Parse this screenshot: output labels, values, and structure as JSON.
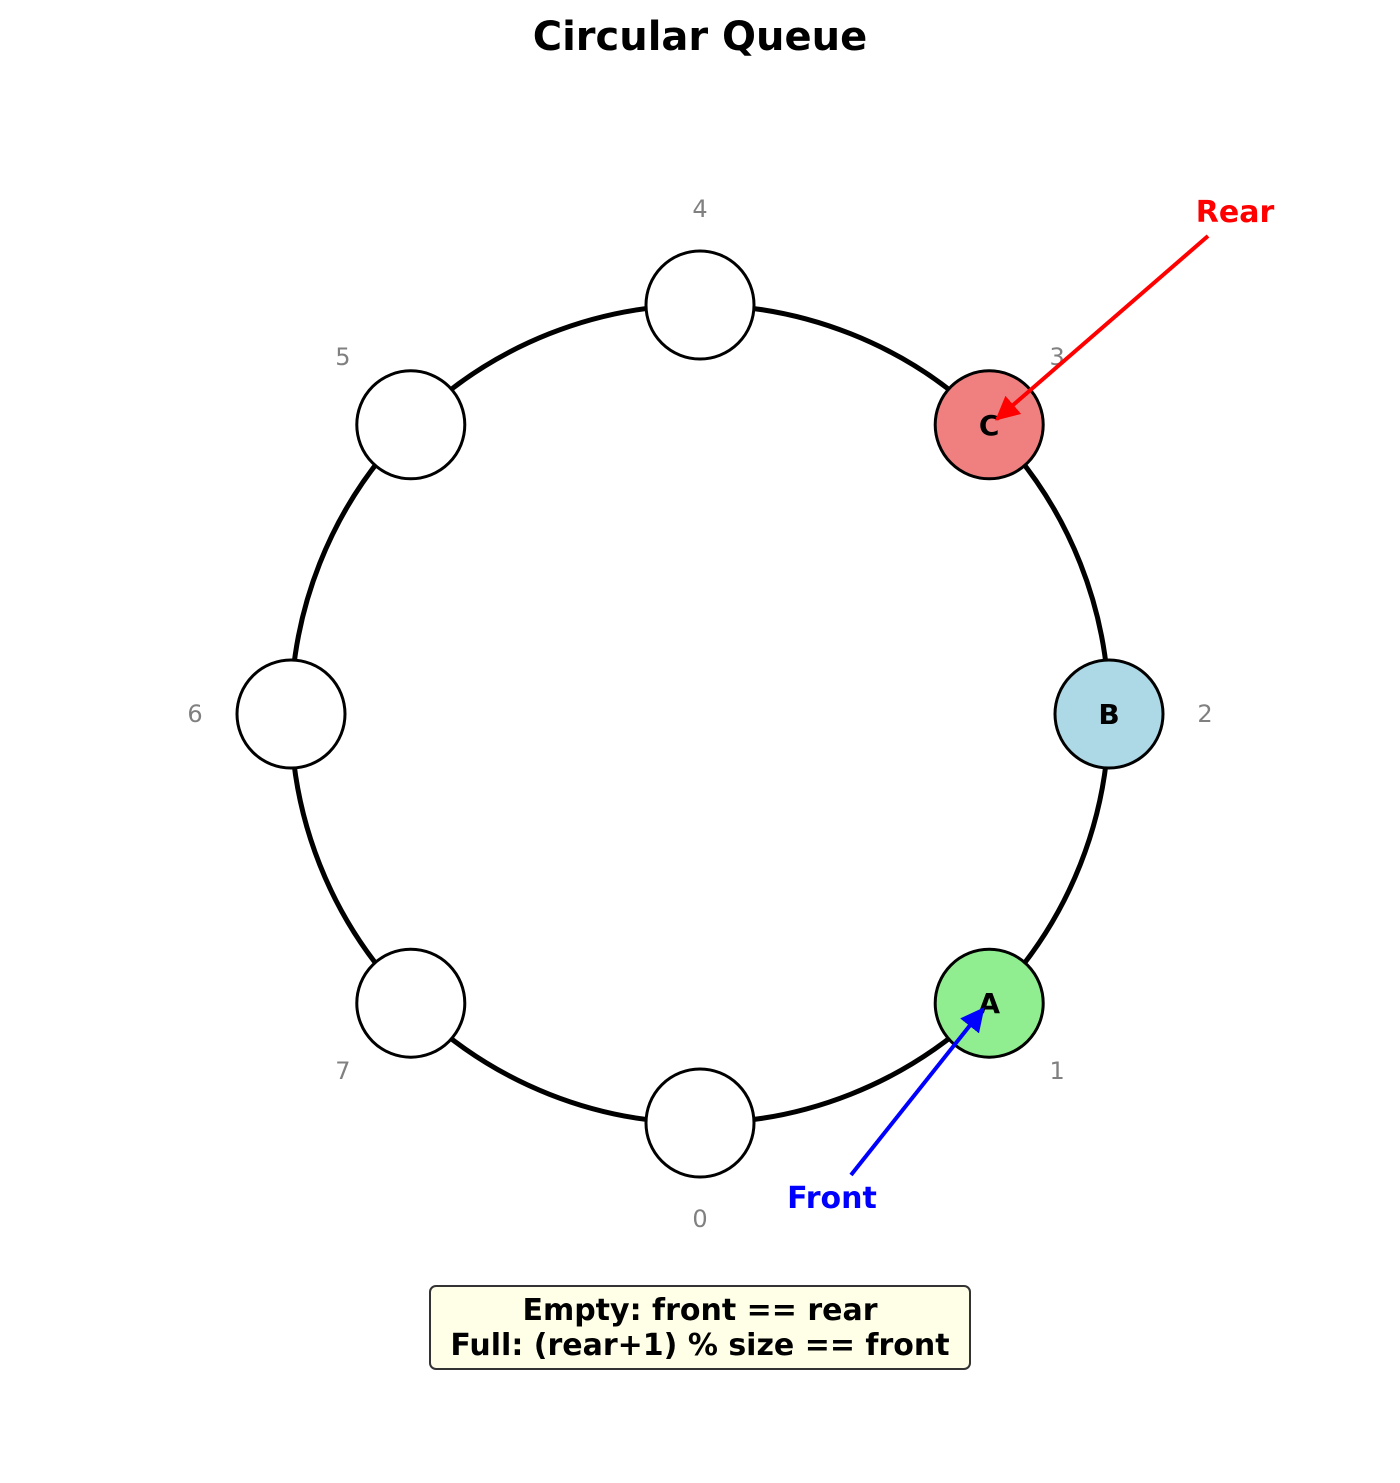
{
  "title": "Circular Queue",
  "size": 8,
  "slots": [
    {
      "index": "0",
      "value": "",
      "fill": "#ffffff"
    },
    {
      "index": "1",
      "value": "A",
      "fill": "#90ee90"
    },
    {
      "index": "2",
      "value": "B",
      "fill": "#add8e6"
    },
    {
      "index": "3",
      "value": "C",
      "fill": "#f08080"
    },
    {
      "index": "4",
      "value": "",
      "fill": "#ffffff"
    },
    {
      "index": "5",
      "value": "",
      "fill": "#ffffff"
    },
    {
      "index": "6",
      "value": "",
      "fill": "#ffffff"
    },
    {
      "index": "7",
      "value": "",
      "fill": "#ffffff"
    }
  ],
  "front": {
    "label": "Front",
    "slot": 1,
    "color": "#0000ff"
  },
  "rear": {
    "label": "Rear",
    "slot": 3,
    "color": "#ff0000"
  },
  "note": {
    "line1": "Empty: front == rear",
    "line2": "Full: (rear+1) % size == front",
    "background": "#ffffe8",
    "border": "#333333"
  }
}
